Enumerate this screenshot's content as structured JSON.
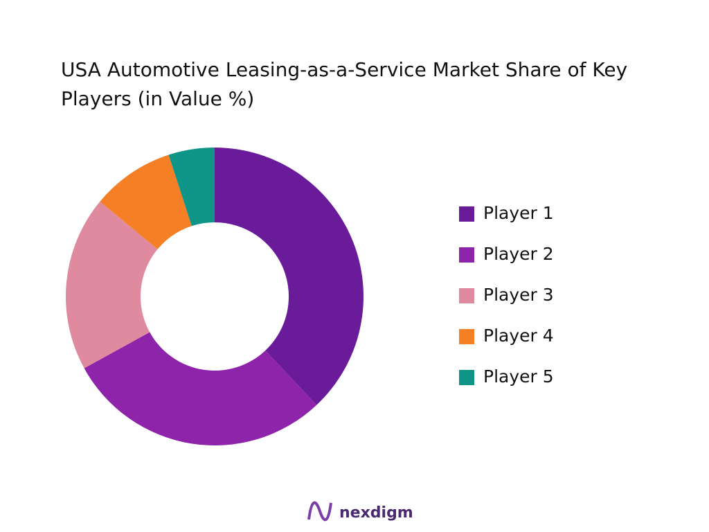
{
  "chart_data": {
    "type": "donut",
    "title": "USA Automotive Leasing-as-a-Service Market Share of Key Players (in Value %)",
    "categories": [
      "Player 1",
      "Player 2",
      "Player 3",
      "Player 4",
      "Player 5"
    ],
    "values": [
      38,
      29,
      19,
      9,
      5
    ],
    "colors": [
      "#6a1b9a",
      "#8e24aa",
      "#e08aa0",
      "#f47f24",
      "#0f9488"
    ],
    "legend": "right",
    "brand": "nexdigm"
  }
}
